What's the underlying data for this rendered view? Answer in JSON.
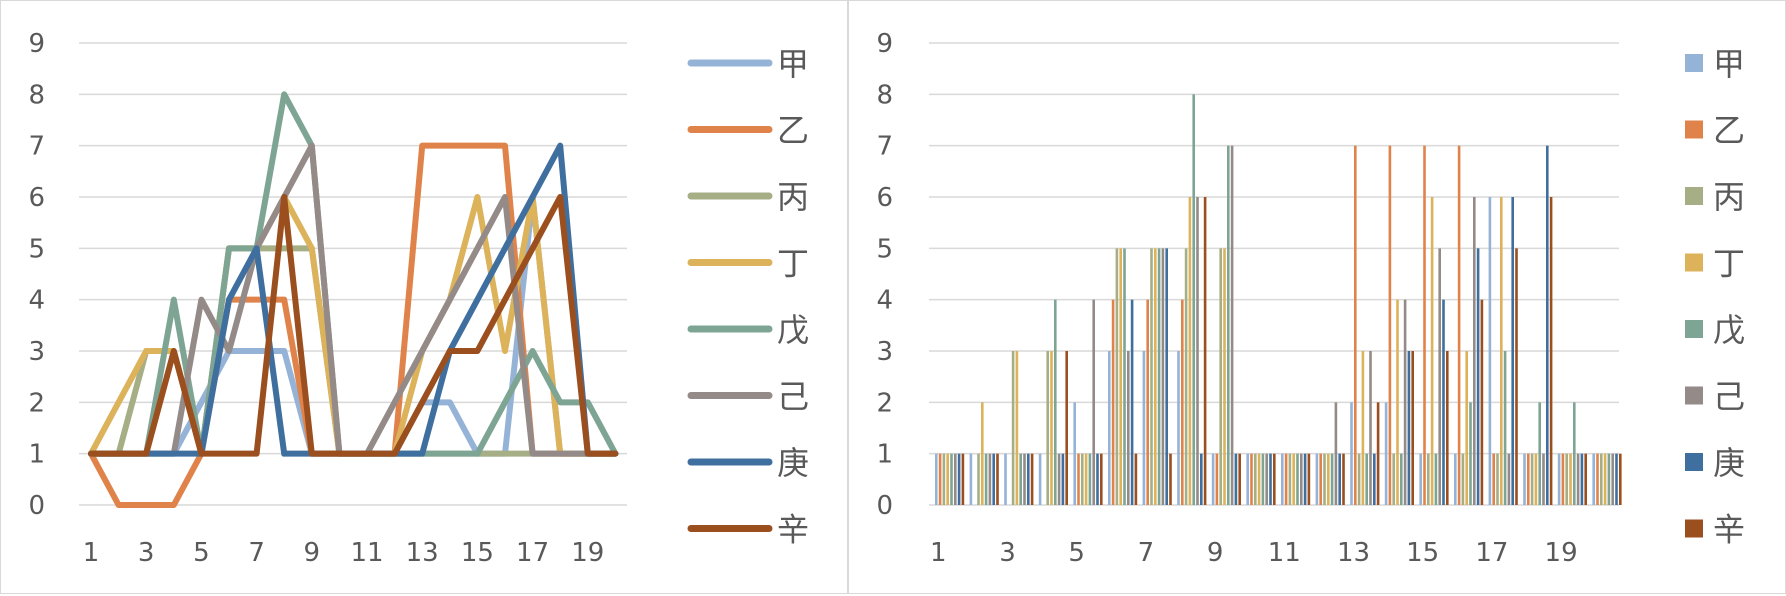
{
  "chart_data": [
    {
      "type": "line",
      "x": [
        1,
        2,
        3,
        4,
        5,
        6,
        7,
        8,
        9,
        10,
        11,
        12,
        13,
        14,
        15,
        16,
        17,
        18,
        19,
        20
      ],
      "x_tick_labels": [
        "1",
        "3",
        "5",
        "7",
        "9",
        "11",
        "13",
        "15",
        "17",
        "19"
      ],
      "y_tick_labels": [
        "0",
        "1",
        "2",
        "3",
        "4",
        "5",
        "6",
        "7",
        "8",
        "9"
      ],
      "ylim": [
        0,
        9
      ],
      "grid": true,
      "legend_position": "right",
      "series": [
        {
          "name": "甲",
          "color": "#95b3d7",
          "values": [
            1,
            1,
            1,
            1,
            2,
            3,
            3,
            3,
            1,
            1,
            1,
            1,
            2,
            2,
            1,
            1,
            6,
            1,
            1,
            1
          ]
        },
        {
          "name": "乙",
          "color": "#e0834a",
          "values": [
            1,
            0,
            0,
            0,
            1,
            4,
            4,
            4,
            1,
            1,
            1,
            1,
            7,
            7,
            7,
            7,
            1,
            1,
            1,
            1
          ]
        },
        {
          "name": "丙",
          "color": "#a5ae84",
          "values": [
            1,
            1,
            3,
            3,
            1,
            5,
            5,
            5,
            5,
            1,
            1,
            1,
            1,
            1,
            1,
            1,
            1,
            1,
            1,
            1
          ]
        },
        {
          "name": "丁",
          "color": "#dcb25a",
          "values": [
            1,
            2,
            3,
            3,
            1,
            5,
            5,
            6,
            5,
            1,
            1,
            1,
            3,
            4,
            6,
            3,
            6,
            1,
            1,
            1
          ]
        },
        {
          "name": "戊",
          "color": "#7ea593",
          "values": [
            1,
            1,
            1,
            4,
            1,
            5,
            5,
            8,
            7,
            1,
            1,
            1,
            1,
            1,
            1,
            2,
            3,
            2,
            2,
            1
          ]
        },
        {
          "name": "己",
          "color": "#948a88",
          "values": [
            1,
            1,
            1,
            1,
            4,
            3,
            5,
            6,
            7,
            1,
            1,
            2,
            3,
            4,
            5,
            6,
            1,
            1,
            1,
            1
          ]
        },
        {
          "name": "庚",
          "color": "#3f6f9f",
          "values": [
            1,
            1,
            1,
            1,
            1,
            4,
            5,
            1,
            1,
            1,
            1,
            1,
            1,
            3,
            4,
            5,
            6,
            7,
            1,
            1
          ]
        },
        {
          "name": "辛",
          "color": "#9b4f1f",
          "values": [
            1,
            1,
            1,
            3,
            1,
            1,
            1,
            6,
            1,
            1,
            1,
            1,
            2,
            3,
            3,
            4,
            5,
            6,
            1,
            1
          ]
        }
      ]
    },
    {
      "type": "bar",
      "x": [
        1,
        2,
        3,
        4,
        5,
        6,
        7,
        8,
        9,
        10,
        11,
        12,
        13,
        14,
        15,
        16,
        17,
        18,
        19,
        20
      ],
      "x_tick_labels": [
        "1",
        "3",
        "5",
        "7",
        "9",
        "11",
        "13",
        "15",
        "17",
        "19"
      ],
      "y_tick_labels": [
        "0",
        "1",
        "2",
        "3",
        "4",
        "5",
        "6",
        "7",
        "8",
        "9"
      ],
      "ylim": [
        0,
        9
      ],
      "grid": true,
      "legend_position": "right",
      "series": [
        {
          "name": "甲",
          "color": "#95b3d7",
          "values": [
            1,
            1,
            1,
            1,
            2,
            3,
            3,
            3,
            1,
            1,
            1,
            1,
            2,
            2,
            1,
            1,
            6,
            1,
            1,
            1
          ]
        },
        {
          "name": "乙",
          "color": "#e0834a",
          "values": [
            1,
            0,
            0,
            0,
            1,
            4,
            4,
            4,
            1,
            1,
            1,
            1,
            7,
            7,
            7,
            7,
            1,
            1,
            1,
            1
          ]
        },
        {
          "name": "丙",
          "color": "#a5ae84",
          "values": [
            1,
            1,
            3,
            3,
            1,
            5,
            5,
            5,
            5,
            1,
            1,
            1,
            1,
            1,
            1,
            1,
            1,
            1,
            1,
            1
          ]
        },
        {
          "name": "丁",
          "color": "#dcb25a",
          "values": [
            1,
            2,
            3,
            3,
            1,
            5,
            5,
            6,
            5,
            1,
            1,
            1,
            3,
            4,
            6,
            3,
            6,
            1,
            1,
            1
          ]
        },
        {
          "name": "戊",
          "color": "#7ea593",
          "values": [
            1,
            1,
            1,
            4,
            1,
            5,
            5,
            8,
            7,
            1,
            1,
            1,
            1,
            1,
            1,
            2,
            3,
            2,
            2,
            1
          ]
        },
        {
          "name": "己",
          "color": "#948a88",
          "values": [
            1,
            1,
            1,
            1,
            4,
            3,
            5,
            6,
            7,
            1,
            1,
            2,
            3,
            4,
            5,
            6,
            1,
            1,
            1,
            1
          ]
        },
        {
          "name": "庚",
          "color": "#3f6f9f",
          "values": [
            1,
            1,
            1,
            1,
            1,
            4,
            5,
            1,
            1,
            1,
            1,
            1,
            1,
            3,
            4,
            5,
            6,
            7,
            1,
            1
          ]
        },
        {
          "name": "辛",
          "color": "#9b4f1f",
          "values": [
            1,
            1,
            1,
            3,
            1,
            1,
            1,
            6,
            1,
            1,
            1,
            1,
            2,
            3,
            3,
            4,
            5,
            6,
            1,
            1
          ]
        }
      ]
    }
  ]
}
